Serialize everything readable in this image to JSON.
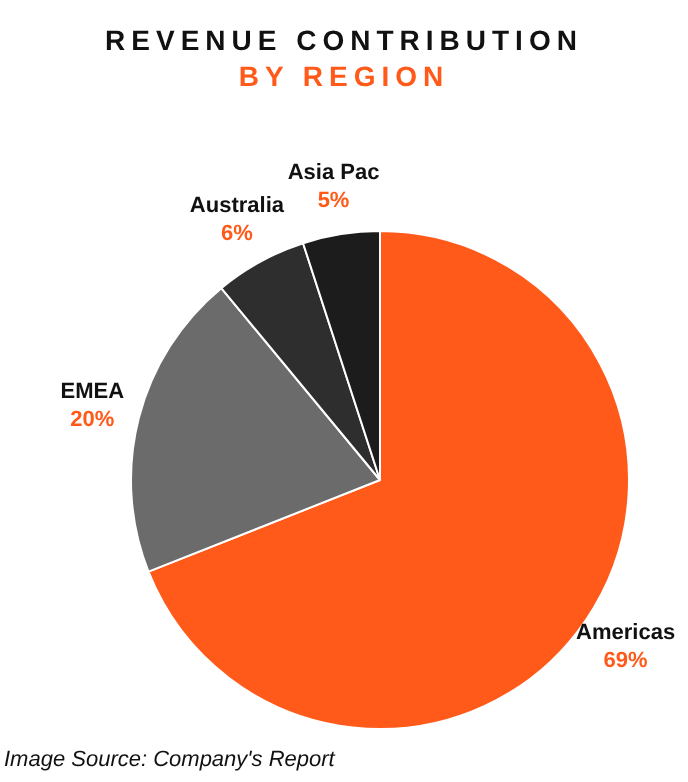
{
  "chart_data": {
    "type": "pie",
    "title": "REVENUE CONTRIBUTION",
    "subtitle": "BY REGION",
    "categories": [
      "Americas",
      "EMEA",
      "Australia",
      "Asia Pac"
    ],
    "values": [
      69,
      20,
      6,
      5
    ],
    "colors": [
      "#ff5a1a",
      "#6b6b6b",
      "#2e2e2e",
      "#1c1c1c"
    ],
    "value_labels": [
      "69%",
      "20%",
      "6%",
      "5%"
    ],
    "legend": false,
    "annotations": [
      "Image Source: Company's Report"
    ]
  }
}
